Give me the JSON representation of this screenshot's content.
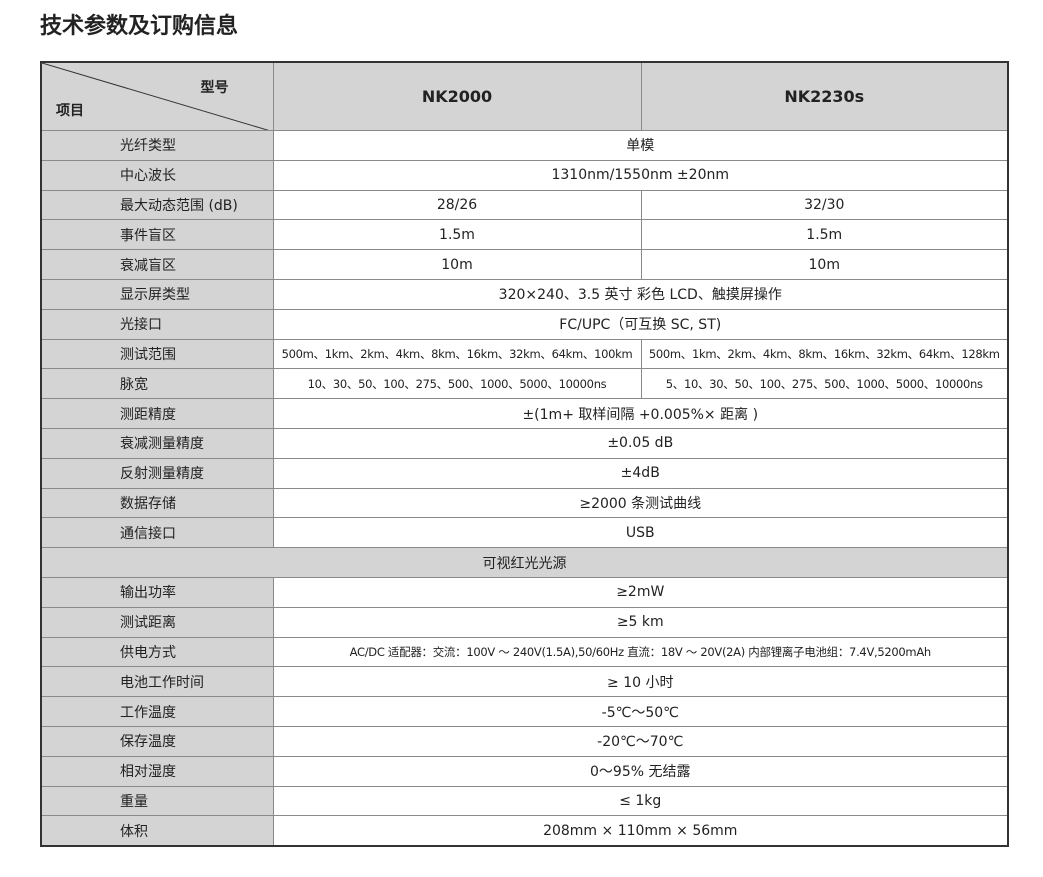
{
  "title": "技术参数及订购信息",
  "table": {
    "header": {
      "model_label": "型号",
      "item_label": "项目",
      "models": [
        "NK2000",
        "NK2230s"
      ]
    },
    "rows": [
      [
        "光纤类型",
        "单模"
      ],
      [
        "中心波长",
        "1310nm/1550nm ±20nm"
      ],
      [
        "最大动态范围 (dB)",
        "28/26",
        "32/30"
      ],
      [
        "事件盲区",
        "1.5m",
        "1.5m"
      ],
      [
        "衰减盲区",
        "10m",
        "10m"
      ],
      [
        "显示屏类型",
        "320×240、3.5 英寸 彩色 LCD、触摸屏操作"
      ],
      [
        "光接口",
        "FC/UPC（可互换 SC, ST)"
      ],
      [
        "测试范围",
        "500m、1km、2km、4km、8km、16km、32km、64km、100km",
        "500m、1km、2km、4km、8km、16km、32km、64km、128km"
      ],
      [
        "脉宽",
        "10、30、50、100、275、500、1000、5000、10000ns",
        "5、10、30、50、100、275、500、1000、5000、10000ns"
      ],
      [
        "测距精度",
        "±(1m+ 取样间隔 +0.005%× 距离 )"
      ],
      [
        "衰减测量精度",
        "±0.05 dB"
      ],
      [
        "反射测量精度",
        "±4dB"
      ],
      [
        "数据存储",
        "≥2000 条测试曲线"
      ],
      [
        "通信接口",
        "USB"
      ],
      [
        "可视红光光源"
      ],
      [
        "输出功率",
        "≥2mW"
      ],
      [
        "测试距离",
        "≥5 km"
      ],
      [
        "供电方式",
        "AC/DC 适配器：交流：100V ～ 240V(1.5A),50/60Hz  直流：18V ～ 20V(2A)  内部锂离子电池组：7.4V,5200mAh"
      ],
      [
        "电池工作时间",
        "≥ 10 小时"
      ],
      [
        "工作温度",
        "-5℃～50℃"
      ],
      [
        "保存温度",
        "-20℃～70℃"
      ],
      [
        "相对湿度",
        "0～95% 无结露"
      ],
      [
        "重量",
        "≤ 1kg"
      ],
      [
        "体积",
        "208mm × 110mm × 56mm"
      ]
    ]
  }
}
